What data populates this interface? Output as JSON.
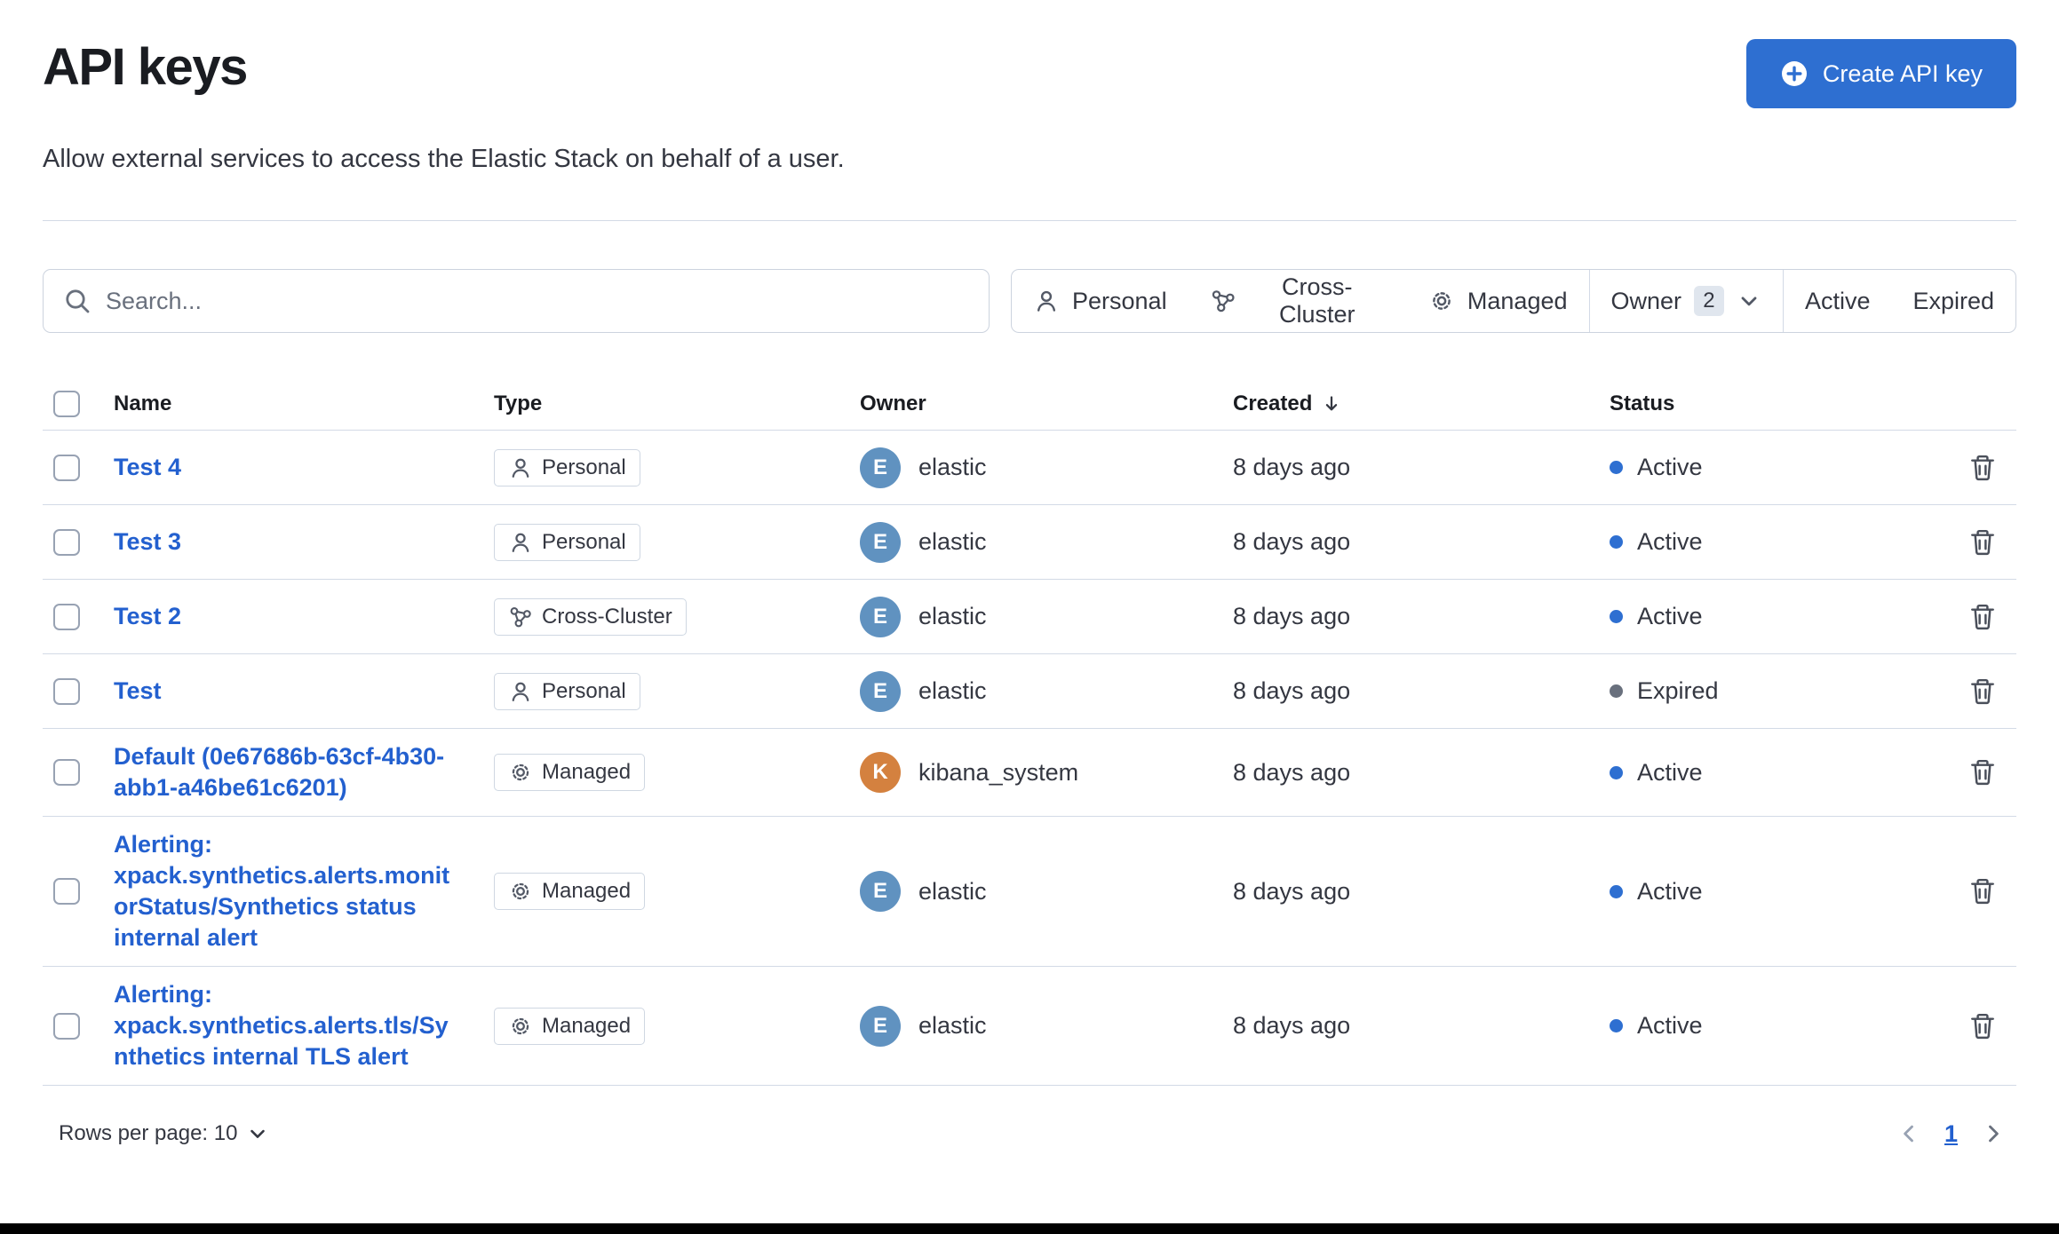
{
  "page": {
    "title": "API keys",
    "subtitle": "Allow external services to access the Elastic Stack on behalf of a user."
  },
  "header": {
    "create_button": "Create API key"
  },
  "filters": {
    "search_placeholder": "Search...",
    "type_filters": [
      {
        "label": "Personal",
        "icon": "user-icon"
      },
      {
        "label": "Cross-Cluster",
        "icon": "cluster-icon"
      },
      {
        "label": "Managed",
        "icon": "gear-icon"
      }
    ],
    "owner_filter": {
      "label": "Owner",
      "count": "2"
    },
    "status_filters": [
      "Active",
      "Expired"
    ]
  },
  "table": {
    "columns": [
      "Name",
      "Type",
      "Owner",
      "Created",
      "Status"
    ],
    "sorted_column": "Created",
    "sort_direction": "desc",
    "rows": [
      {
        "name": "Test 4",
        "type": "Personal",
        "type_icon": "user-icon",
        "owner": "elastic",
        "owner_initial": "E",
        "owner_color": "#6092c0",
        "created": "8 days ago",
        "status": "Active"
      },
      {
        "name": "Test 3",
        "type": "Personal",
        "type_icon": "user-icon",
        "owner": "elastic",
        "owner_initial": "E",
        "owner_color": "#6092c0",
        "created": "8 days ago",
        "status": "Active"
      },
      {
        "name": "Test 2",
        "type": "Cross-Cluster",
        "type_icon": "cluster-icon",
        "owner": "elastic",
        "owner_initial": "E",
        "owner_color": "#6092c0",
        "created": "8 days ago",
        "status": "Active"
      },
      {
        "name": "Test",
        "type": "Personal",
        "type_icon": "user-icon",
        "owner": "elastic",
        "owner_initial": "E",
        "owner_color": "#6092c0",
        "created": "8 days ago",
        "status": "Expired"
      },
      {
        "name": "Default (0e67686b-63cf-4b30-abb1-a46be61c6201)",
        "type": "Managed",
        "type_icon": "gear-icon",
        "owner": "kibana_system",
        "owner_initial": "K",
        "owner_color": "#d4813f",
        "created": "8 days ago",
        "status": "Active"
      },
      {
        "name": "Alerting: xpack.synthetics.alerts.monitorStatus/Synthetics status internal alert",
        "type": "Managed",
        "type_icon": "gear-icon",
        "owner": "elastic",
        "owner_initial": "E",
        "owner_color": "#6092c0",
        "created": "8 days ago",
        "status": "Active"
      },
      {
        "name": "Alerting: xpack.synthetics.alerts.tls/Synthetics internal TLS alert",
        "type": "Managed",
        "type_icon": "gear-icon",
        "owner": "elastic",
        "owner_initial": "E",
        "owner_color": "#6092c0",
        "created": "8 days ago",
        "status": "Active"
      }
    ]
  },
  "pagination": {
    "rows_per_page_label": "Rows per page: 10",
    "current_page": "1"
  },
  "colors": {
    "primary_button": "#2e6fd1",
    "link": "#2360cf",
    "active_dot": "#2e6fd1",
    "expired_dot": "#69707d",
    "border": "#d3dae6"
  }
}
